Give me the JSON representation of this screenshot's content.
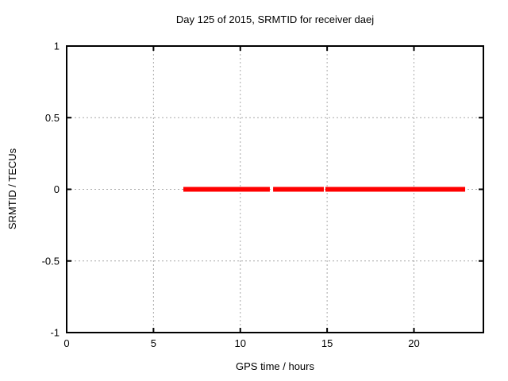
{
  "chart_data": {
    "type": "line",
    "title": "Day 125 of 2015, SRMTID for receiver daej",
    "xlabel": "GPS time / hours",
    "ylabel": "SRMTID / TECUs",
    "xlim": [
      0,
      24
    ],
    "ylim": [
      -1,
      1
    ],
    "xticks": [
      0,
      5,
      10,
      15,
      20
    ],
    "yticks": [
      -1,
      -0.5,
      0,
      0.5,
      1
    ],
    "grid": true,
    "legend_position": "none",
    "background_color": "#ffffff",
    "frame_color": "#000000",
    "grid_color": "#a8a8a8",
    "text_color": "#000000",
    "series": [
      {
        "name": "SRMTID",
        "color": "#ff0000",
        "y_value": 0,
        "segments_hours": [
          [
            6.72,
            11.7
          ],
          [
            11.89,
            14.81
          ],
          [
            14.9,
            22.95
          ]
        ]
      }
    ]
  }
}
